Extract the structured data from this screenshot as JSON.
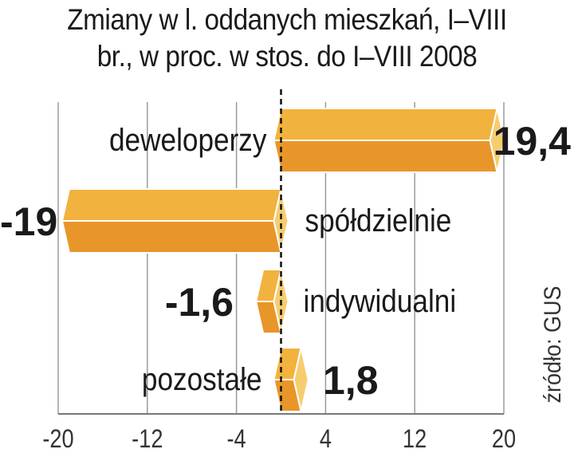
{
  "chart_data": {
    "type": "bar",
    "orientation": "horizontal",
    "title": "Zmiany w l. oddanych mieszkań, I–VIII br., w proc. w stos. do I–VIII 2008",
    "title_lines": [
      "Zmiany w l. oddanych mieszkań, I–VIII",
      "br., w proc. w stos. do I–VIII 2008"
    ],
    "categories": [
      "deweloperzy",
      "spółdzielnie",
      "indywidualni",
      "pozostałe"
    ],
    "values": [
      19.4,
      -19,
      -1.6,
      1.8
    ],
    "value_labels": [
      "19,4",
      "-19",
      "-1,6",
      "1,8"
    ],
    "xlim": [
      -20,
      20
    ],
    "xticks": [
      -20,
      -12,
      -4,
      4,
      12,
      20
    ],
    "xtick_labels": [
      "-20",
      "-12",
      "-4",
      "4",
      "12",
      "20"
    ],
    "grid": true,
    "source": "źródło: GUS",
    "colors": {
      "top": "#F2B23E",
      "bottom": "#E8962A",
      "cap": "#F6CD6E",
      "grid": "#9a9a9a",
      "text": "#1a1a1a"
    }
  }
}
